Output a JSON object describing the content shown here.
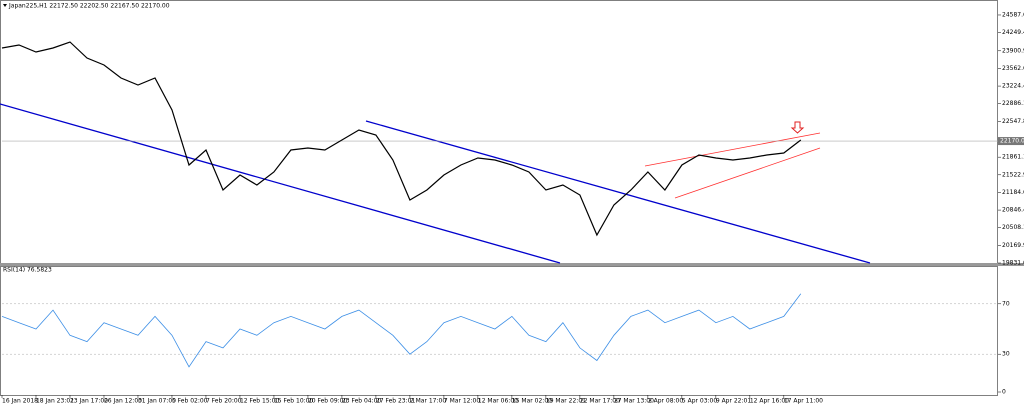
{
  "chart_data": [
    {
      "type": "line",
      "title": "Japan225,H1  22172.50 22202.50 22167.50 22170.00",
      "x": [
        0,
        0.5,
        1,
        1.5,
        2,
        2.5,
        3,
        3.5,
        4,
        4.5,
        5,
        5.5,
        6,
        6.5,
        7,
        7.5,
        8,
        8.5,
        9,
        9.5,
        10,
        10.5,
        11,
        11.5,
        12,
        12.5,
        13,
        13.5,
        14,
        14.5,
        15,
        15.5,
        16,
        16.5,
        17,
        17.5,
        18,
        18.5,
        19,
        19.5,
        20,
        20.5,
        21,
        21.5,
        22,
        22.5,
        23,
        23.5
      ],
      "xlim": [
        0,
        29.3
      ],
      "xticks": [
        {
          "value": 0,
          "label": "16 Jan 2018"
        },
        {
          "value": 1,
          "label": "18 Jan 23:01"
        },
        {
          "value": 2,
          "label": "23 Jan 17:00"
        },
        {
          "value": 3,
          "label": "26 Jan 12:00"
        },
        {
          "value": 4,
          "label": "31 Jan 07:00"
        },
        {
          "value": 5,
          "label": "5 Feb 02:00"
        },
        {
          "value": 6,
          "label": "7 Feb 20:00"
        },
        {
          "value": 7,
          "label": "12 Feb 15:00"
        },
        {
          "value": 8,
          "label": "15 Feb 10:00"
        },
        {
          "value": 9,
          "label": "20 Feb 09:00"
        },
        {
          "value": 10,
          "label": "23 Feb 04:00"
        },
        {
          "value": 11,
          "label": "27 Feb 23:01"
        },
        {
          "value": 12,
          "label": "2 Mar 17:00"
        },
        {
          "value": 13,
          "label": "7 Mar 12:00"
        },
        {
          "value": 14,
          "label": "12 Mar 06:00"
        },
        {
          "value": 15,
          "label": "15 Mar 02:00"
        },
        {
          "value": 16,
          "label": "19 Mar 22:01"
        },
        {
          "value": 17,
          "label": "22 Mar 17:00"
        },
        {
          "value": 18,
          "label": "27 Mar 13:00"
        },
        {
          "value": 19,
          "label": "2 Apr 08:00"
        },
        {
          "value": 20,
          "label": "5 Apr 03:00"
        },
        {
          "value": 21,
          "label": "9 Apr 22:01"
        },
        {
          "value": 22,
          "label": "12 Apr 16:00"
        },
        {
          "value": 23,
          "label": "17 Apr 11:00"
        }
      ],
      "series": [
        {
          "color": "#000000",
          "values": [
            23954,
            24012,
            23877,
            23954,
            24069,
            23762,
            23628,
            23379,
            23245,
            23379,
            22765,
            21711,
            21998,
            21231,
            21519,
            21327,
            21577,
            21998,
            22037,
            21998,
            22190,
            22382,
            22286,
            21807,
            21040,
            21231,
            21519,
            21711,
            21845,
            21807,
            21711,
            21577,
            21231,
            21327,
            21135,
            20368,
            20944,
            21231,
            21577,
            21231,
            21711,
            21903,
            21845,
            21807,
            21845,
            21903,
            21941,
            22190
          ]
        }
      ],
      "ylim": [
        19831.65,
        24836.6
      ],
      "yticks": [
        {
          "value": 24587.65,
          "label": "24587.65"
        },
        {
          "value": 24249.4,
          "label": "24249.40"
        },
        {
          "value": 23900.9,
          "label": "23900.90"
        },
        {
          "value": 23562.65,
          "label": "23562.65"
        },
        {
          "value": 23224.4,
          "label": "23224.40"
        },
        {
          "value": 22886.15,
          "label": "22886.15"
        },
        {
          "value": 22547.8,
          "label": "22547.80"
        },
        {
          "value": 21861.15,
          "label": "21861.15"
        },
        {
          "value": 21522.9,
          "label": "21522.90"
        },
        {
          "value": 21184.65,
          "label": "21184.65"
        },
        {
          "value": 20846.4,
          "label": "20846.40"
        },
        {
          "value": 20508.15,
          "label": "20508.15"
        },
        {
          "value": 20169.9,
          "label": "20169.90"
        },
        {
          "value": 19831.65,
          "label": "19831.65"
        }
      ],
      "price_line": {
        "value": 22170,
        "label": "22170.00"
      }
    },
    {
      "type": "line",
      "title": "RSI(14) 76.5823",
      "x": [
        0,
        0.5,
        1,
        1.5,
        2,
        2.5,
        3,
        3.5,
        4,
        4.5,
        5,
        5.5,
        6,
        6.5,
        7,
        7.5,
        8,
        8.5,
        9,
        9.5,
        10,
        10.5,
        11,
        11.5,
        12,
        12.5,
        13,
        13.5,
        14,
        14.5,
        15,
        15.5,
        16,
        16.5,
        17,
        17.5,
        18,
        18.5,
        19,
        19.5,
        20,
        20.5,
        21,
        21.5,
        22,
        22.5,
        23,
        23.5
      ],
      "xlim": [
        0,
        29.3
      ],
      "series": [
        {
          "color": "#3d8fe6",
          "values": [
            60,
            55,
            50,
            65,
            45,
            40,
            55,
            50,
            45,
            60,
            45,
            20,
            40,
            35,
            50,
            45,
            55,
            60,
            55,
            50,
            60,
            65,
            55,
            45,
            30,
            40,
            55,
            60,
            55,
            50,
            60,
            45,
            40,
            55,
            35,
            25,
            45,
            60,
            65,
            55,
            60,
            65,
            55,
            60,
            50,
            55,
            60,
            78
          ]
        }
      ],
      "ylim": [
        0,
        100
      ],
      "yticks": [
        0,
        30,
        70
      ]
    }
  ]
}
